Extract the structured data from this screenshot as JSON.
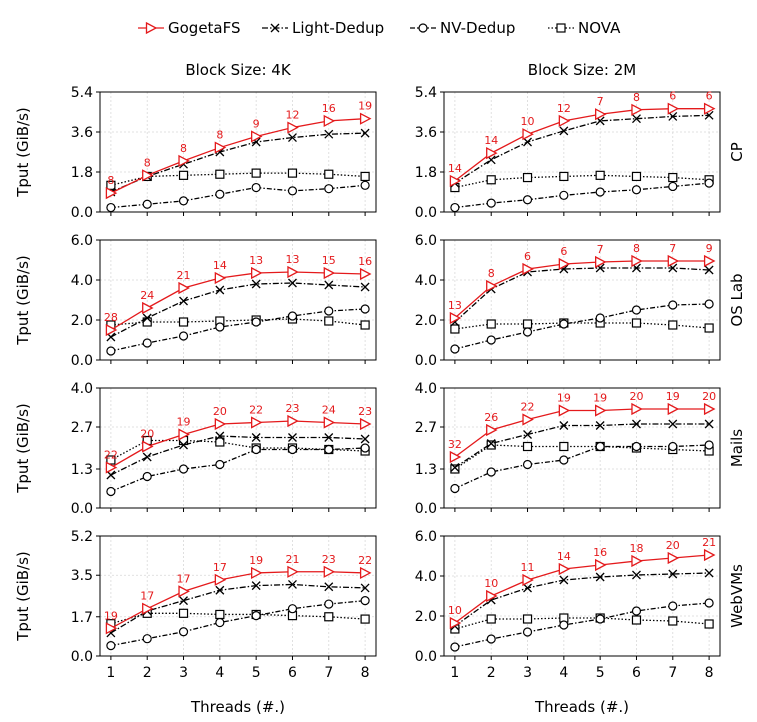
{
  "legend": {
    "items": [
      {
        "name": "GogetaFS",
        "color": "#e41a1c",
        "marker": "triangle-right",
        "dash": "solid"
      },
      {
        "name": "Light-Dedup",
        "color": "#000000",
        "marker": "x",
        "dash": "dashdot"
      },
      {
        "name": "NV-Dedup",
        "color": "#000000",
        "marker": "circle",
        "dash": "dashdotline"
      },
      {
        "name": "NOVA",
        "color": "#000000",
        "marker": "square",
        "dash": "dotted"
      }
    ]
  },
  "column_titles": [
    "Block Size: 4K",
    "Block Size: 2M"
  ],
  "row_labels": [
    "CP",
    "OS Lab",
    "Mails",
    "WebVMs"
  ],
  "y_axis_label": "Tput (GiB/s)",
  "x_axis_label": "Threads (#.)",
  "chart_data": [
    {
      "type": "line",
      "row": "CP",
      "column": "Block Size: 4K",
      "x": [
        1,
        2,
        3,
        4,
        5,
        6,
        7,
        8
      ],
      "ylim": [
        0,
        5.4
      ],
      "yticks": [
        "0.0",
        "1.8",
        "3.6",
        "5.4"
      ],
      "grid": true,
      "series": [
        {
          "name": "GogetaFS",
          "values": [
            0.85,
            1.65,
            2.3,
            2.9,
            3.4,
            3.8,
            4.1,
            4.2
          ],
          "labels": [
            "8",
            "8",
            "8",
            "8",
            "9",
            "12",
            "16",
            "19"
          ]
        },
        {
          "name": "Light-Dedup",
          "values": [
            0.9,
            1.6,
            2.15,
            2.7,
            3.15,
            3.35,
            3.5,
            3.55
          ]
        },
        {
          "name": "NV-Dedup",
          "values": [
            0.2,
            0.35,
            0.5,
            0.8,
            1.1,
            0.95,
            1.05,
            1.2
          ]
        },
        {
          "name": "NOVA",
          "values": [
            1.2,
            1.6,
            1.65,
            1.7,
            1.75,
            1.75,
            1.7,
            1.6
          ]
        }
      ]
    },
    {
      "type": "line",
      "row": "CP",
      "column": "Block Size: 2M",
      "x": [
        1,
        2,
        3,
        4,
        5,
        6,
        7,
        8
      ],
      "ylim": [
        0,
        5.4
      ],
      "yticks": [
        "0.0",
        "1.8",
        "3.6",
        "5.4"
      ],
      "grid": true,
      "series": [
        {
          "name": "GogetaFS",
          "values": [
            1.4,
            2.65,
            3.5,
            4.1,
            4.4,
            4.6,
            4.65,
            4.65
          ],
          "labels": [
            "14",
            "14",
            "10",
            "12",
            "7",
            "8",
            "6",
            "6"
          ]
        },
        {
          "name": "Light-Dedup",
          "values": [
            1.3,
            2.35,
            3.15,
            3.65,
            4.1,
            4.2,
            4.3,
            4.35
          ]
        },
        {
          "name": "NV-Dedup",
          "values": [
            0.2,
            0.4,
            0.55,
            0.75,
            0.9,
            1.0,
            1.15,
            1.3
          ]
        },
        {
          "name": "NOVA",
          "values": [
            1.1,
            1.45,
            1.55,
            1.6,
            1.65,
            1.6,
            1.55,
            1.45
          ]
        }
      ]
    },
    {
      "type": "line",
      "row": "OS Lab",
      "column": "Block Size: 4K",
      "x": [
        1,
        2,
        3,
        4,
        5,
        6,
        7,
        8
      ],
      "ylim": [
        0,
        6.0
      ],
      "yticks": [
        "0.0",
        "2.0",
        "4.0",
        "6.0"
      ],
      "grid": true,
      "series": [
        {
          "name": "GogetaFS",
          "values": [
            1.5,
            2.6,
            3.6,
            4.1,
            4.35,
            4.4,
            4.35,
            4.3
          ],
          "labels": [
            "28",
            "24",
            "21",
            "14",
            "13",
            "13",
            "15",
            "16"
          ]
        },
        {
          "name": "Light-Dedup",
          "values": [
            1.15,
            2.1,
            2.95,
            3.5,
            3.8,
            3.85,
            3.75,
            3.65
          ]
        },
        {
          "name": "NV-Dedup",
          "values": [
            0.45,
            0.85,
            1.2,
            1.65,
            1.9,
            2.2,
            2.45,
            2.55
          ]
        },
        {
          "name": "NOVA",
          "values": [
            1.75,
            1.9,
            1.9,
            1.95,
            2.0,
            2.05,
            1.95,
            1.75
          ]
        }
      ]
    },
    {
      "type": "line",
      "row": "OS Lab",
      "column": "Block Size: 2M",
      "x": [
        1,
        2,
        3,
        4,
        5,
        6,
        7,
        8
      ],
      "ylim": [
        0,
        6.0
      ],
      "yticks": [
        "0.0",
        "2.0",
        "4.0",
        "6.0"
      ],
      "grid": true,
      "series": [
        {
          "name": "GogetaFS",
          "values": [
            2.1,
            3.7,
            4.55,
            4.8,
            4.9,
            4.95,
            4.95,
            4.95
          ],
          "labels": [
            "13",
            "8",
            "6",
            "6",
            "7",
            "8",
            "7",
            "9"
          ]
        },
        {
          "name": "Light-Dedup",
          "values": [
            1.9,
            3.55,
            4.4,
            4.55,
            4.6,
            4.6,
            4.6,
            4.5
          ]
        },
        {
          "name": "NV-Dedup",
          "values": [
            0.55,
            1.0,
            1.4,
            1.8,
            2.1,
            2.5,
            2.75,
            2.8
          ]
        },
        {
          "name": "NOVA",
          "values": [
            1.55,
            1.8,
            1.8,
            1.85,
            1.85,
            1.85,
            1.75,
            1.6
          ]
        }
      ]
    },
    {
      "type": "line",
      "row": "Mails",
      "column": "Block Size: 4K",
      "x": [
        1,
        2,
        3,
        4,
        5,
        6,
        7,
        8
      ],
      "ylim": [
        0,
        4.0
      ],
      "yticks": [
        "0.0",
        "1.3",
        "2.7",
        "4.0"
      ],
      "grid": true,
      "series": [
        {
          "name": "GogetaFS",
          "values": [
            1.35,
            2.05,
            2.45,
            2.8,
            2.85,
            2.9,
            2.85,
            2.8
          ],
          "labels": [
            "22",
            "20",
            "19",
            "20",
            "22",
            "23",
            "24",
            "23"
          ]
        },
        {
          "name": "Light-Dedup",
          "values": [
            1.1,
            1.7,
            2.1,
            2.4,
            2.35,
            2.35,
            2.35,
            2.3
          ]
        },
        {
          "name": "NV-Dedup",
          "values": [
            0.55,
            1.05,
            1.3,
            1.45,
            1.95,
            1.95,
            1.95,
            2.0
          ]
        },
        {
          "name": "NOVA",
          "values": [
            1.6,
            2.25,
            2.25,
            2.2,
            2.0,
            2.0,
            1.95,
            1.9
          ]
        }
      ]
    },
    {
      "type": "line",
      "row": "Mails",
      "column": "Block Size: 2M",
      "x": [
        1,
        2,
        3,
        4,
        5,
        6,
        7,
        8
      ],
      "ylim": [
        0,
        4.0
      ],
      "yticks": [
        "0.0",
        "1.3",
        "2.7",
        "4.0"
      ],
      "grid": true,
      "series": [
        {
          "name": "GogetaFS",
          "values": [
            1.7,
            2.6,
            2.95,
            3.25,
            3.25,
            3.3,
            3.3,
            3.3
          ],
          "labels": [
            "32",
            "26",
            "22",
            "19",
            "19",
            "20",
            "19",
            "20"
          ]
        },
        {
          "name": "Light-Dedup",
          "values": [
            1.35,
            2.15,
            2.45,
            2.75,
            2.75,
            2.8,
            2.8,
            2.8
          ]
        },
        {
          "name": "NV-Dedup",
          "values": [
            0.65,
            1.2,
            1.45,
            1.6,
            2.05,
            2.05,
            2.05,
            2.1
          ]
        },
        {
          "name": "NOVA",
          "values": [
            1.3,
            2.1,
            2.05,
            2.05,
            2.05,
            2.0,
            1.95,
            1.9
          ]
        }
      ]
    },
    {
      "type": "line",
      "row": "WebVMs",
      "column": "Block Size: 4K",
      "x": [
        1,
        2,
        3,
        4,
        5,
        6,
        7,
        8
      ],
      "ylim": [
        0,
        5.2
      ],
      "yticks": [
        "0.0",
        "1.7",
        "3.5",
        "5.2"
      ],
      "grid": true,
      "series": [
        {
          "name": "GogetaFS",
          "values": [
            1.2,
            2.05,
            2.8,
            3.3,
            3.6,
            3.65,
            3.65,
            3.6
          ],
          "labels": [
            "19",
            "17",
            "17",
            "17",
            "19",
            "21",
            "23",
            "22"
          ]
        },
        {
          "name": "Light-Dedup",
          "values": [
            1.0,
            1.95,
            2.4,
            2.85,
            3.05,
            3.1,
            3.0,
            2.95
          ]
        },
        {
          "name": "NV-Dedup",
          "values": [
            0.45,
            0.75,
            1.05,
            1.45,
            1.75,
            2.05,
            2.25,
            2.4
          ]
        },
        {
          "name": "NOVA",
          "values": [
            1.4,
            1.85,
            1.85,
            1.8,
            1.8,
            1.75,
            1.7,
            1.6
          ]
        }
      ]
    },
    {
      "type": "line",
      "row": "WebVMs",
      "column": "Block Size: 2M",
      "x": [
        1,
        2,
        3,
        4,
        5,
        6,
        7,
        8
      ],
      "ylim": [
        0,
        6.0
      ],
      "yticks": [
        "0.0",
        "2.0",
        "4.0",
        "6.0"
      ],
      "grid": true,
      "series": [
        {
          "name": "GogetaFS",
          "values": [
            1.65,
            3.0,
            3.8,
            4.35,
            4.55,
            4.75,
            4.9,
            5.05
          ],
          "labels": [
            "10",
            "10",
            "11",
            "14",
            "16",
            "18",
            "20",
            "21"
          ]
        },
        {
          "name": "Light-Dedup",
          "values": [
            1.5,
            2.8,
            3.4,
            3.8,
            3.95,
            4.05,
            4.1,
            4.15
          ]
        },
        {
          "name": "NV-Dedup",
          "values": [
            0.45,
            0.85,
            1.2,
            1.55,
            1.85,
            2.25,
            2.5,
            2.65
          ]
        },
        {
          "name": "NOVA",
          "values": [
            1.35,
            1.85,
            1.85,
            1.9,
            1.9,
            1.8,
            1.75,
            1.6
          ]
        }
      ]
    }
  ]
}
